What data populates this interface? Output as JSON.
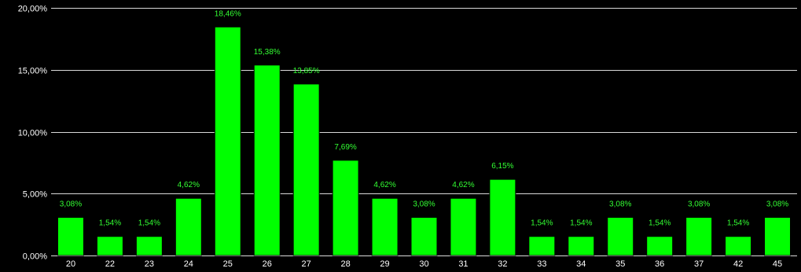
{
  "chart_data": {
    "type": "bar",
    "title": "",
    "xlabel": "",
    "ylabel": "",
    "categories": [
      "20",
      "22",
      "23",
      "24",
      "25",
      "26",
      "27",
      "28",
      "29",
      "30",
      "31",
      "32",
      "33",
      "34",
      "35",
      "36",
      "37",
      "42",
      "45"
    ],
    "values": [
      3.08,
      1.54,
      1.54,
      4.62,
      18.46,
      15.38,
      13.85,
      7.69,
      4.62,
      3.08,
      4.62,
      6.15,
      1.54,
      1.54,
      3.08,
      1.54,
      3.08,
      1.54,
      3.08
    ],
    "data_labels": [
      "3,08%",
      "1,54%",
      "1,54%",
      "4,62%",
      "18,46%",
      "15,38%",
      "13,85%",
      "7,69%",
      "4,62%",
      "3,08%",
      "4,62%",
      "6,15%",
      "1,54%",
      "1,54%",
      "3,08%",
      "1,54%",
      "3,08%",
      "1,54%",
      "3,08%"
    ],
    "ylim": [
      0,
      20
    ],
    "yticks": [
      0,
      5,
      10,
      15,
      20
    ],
    "ytick_labels": [
      "0,00%",
      "5,00%",
      "10,00%",
      "15,00%",
      "20,00%"
    ],
    "grid": true,
    "legend": "none",
    "colors": {
      "background": "#000000",
      "bar": "#00ff00",
      "bar_stroke": "#000000",
      "grid": "#d9d9d9",
      "tick_text": "#ffffff",
      "data_label_text": "#33ff33"
    }
  }
}
